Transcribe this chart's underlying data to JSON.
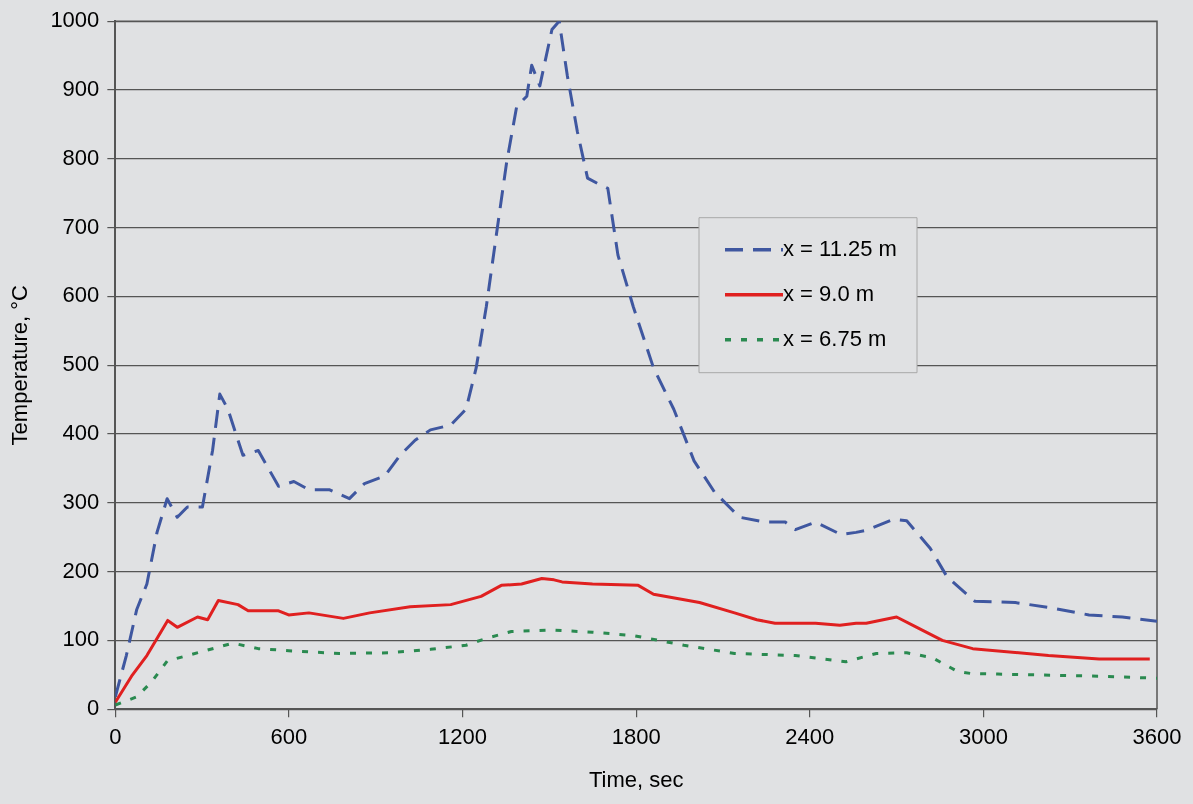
{
  "chart_data": {
    "type": "line",
    "xlabel": "Time, sec",
    "ylabel": "Temperature, °C",
    "xlim": [
      0,
      3600
    ],
    "xticks": [
      0,
      600,
      1200,
      1800,
      2400,
      3000,
      3600
    ],
    "ylim": [
      0,
      1000
    ],
    "yticks": [
      0,
      100,
      200,
      300,
      400,
      500,
      600,
      700,
      800,
      900,
      1000
    ],
    "grid": "y",
    "legend": "right",
    "marker": "none",
    "series": [
      {
        "name": "x = 11.25 m",
        "color": "#3f57a0",
        "line_style": "dashed",
        "x": [
          0,
          38,
          74,
          109,
          144,
          179,
          214,
          249,
          301,
          336,
          361,
          389,
          441,
          494,
          564,
          617,
          669,
          739,
          809,
          861,
          931,
          984,
          1036,
          1089,
          1159,
          1212,
          1247,
          1282,
          1317,
          1352,
          1387,
          1422,
          1439,
          1467,
          1509,
          1534,
          1562,
          1597,
          1632,
          1667,
          1702,
          1737,
          1790,
          1860,
          1930,
          2000,
          2070,
          2157,
          2245,
          2315,
          2350,
          2420,
          2507,
          2560,
          2595,
          2689,
          2735,
          2816,
          2875,
          2970,
          3110,
          3225,
          3365,
          3480,
          3600
        ],
        "values": [
          18,
          78,
          145,
          182,
          257,
          306,
          279,
          294,
          294,
          376,
          458,
          436,
          369,
          376,
          324,
          331,
          319,
          319,
          306,
          328,
          339,
          369,
          391,
          406,
          413,
          436,
          496,
          585,
          690,
          794,
          876,
          891,
          936,
          906,
          988,
          1000,
          921,
          839,
          772,
          764,
          757,
          660,
          585,
          496,
          436,
          361,
          316,
          279,
          272,
          272,
          261,
          272,
          254,
          257,
          260,
          276,
          274,
          234,
          192,
          157,
          155,
          148,
          137,
          134,
          128
        ]
      },
      {
        "name": "x = 9.0 m",
        "color": "#e02020",
        "line_style": "solid",
        "x": [
          0,
          56,
          109,
          181,
          214,
          284,
          319,
          356,
          424,
          459,
          564,
          599,
          669,
          788,
          879,
          1019,
          1159,
          1264,
          1334,
          1404,
          1474,
          1516,
          1544,
          1649,
          1807,
          1860,
          2019,
          2140,
          2217,
          2280,
          2420,
          2504,
          2560,
          2595,
          2700,
          2770,
          2858,
          2963,
          3225,
          3400,
          3575
        ],
        "values": [
          10,
          48,
          78,
          129,
          119,
          134,
          130,
          158,
          152,
          143,
          143,
          137,
          140,
          132,
          140,
          149,
          152,
          164,
          180,
          182,
          190,
          188,
          185,
          182,
          180,
          167,
          155,
          140,
          130,
          125,
          125,
          122,
          125,
          125,
          134,
          119,
          100,
          88,
          78,
          73,
          73
        ]
      },
      {
        "name": "x = 6.75 m",
        "color": "#2a8a50",
        "line_style": "dotted",
        "x": [
          0,
          74,
          126,
          179,
          249,
          354,
          406,
          494,
          599,
          774,
          949,
          1089,
          1212,
          1282,
          1369,
          1509,
          1649,
          1790,
          1965,
          2140,
          2350,
          2525,
          2630,
          2735,
          2823,
          2910,
          2955,
          3050,
          3400,
          3600
        ],
        "values": [
          6,
          18,
          40,
          70,
          78,
          90,
          96,
          88,
          85,
          81,
          82,
          87,
          93,
          103,
          113,
          115,
          112,
          107,
          93,
          81,
          78,
          69,
          81,
          82,
          75,
          55,
          52,
          51,
          48,
          45
        ]
      }
    ]
  }
}
